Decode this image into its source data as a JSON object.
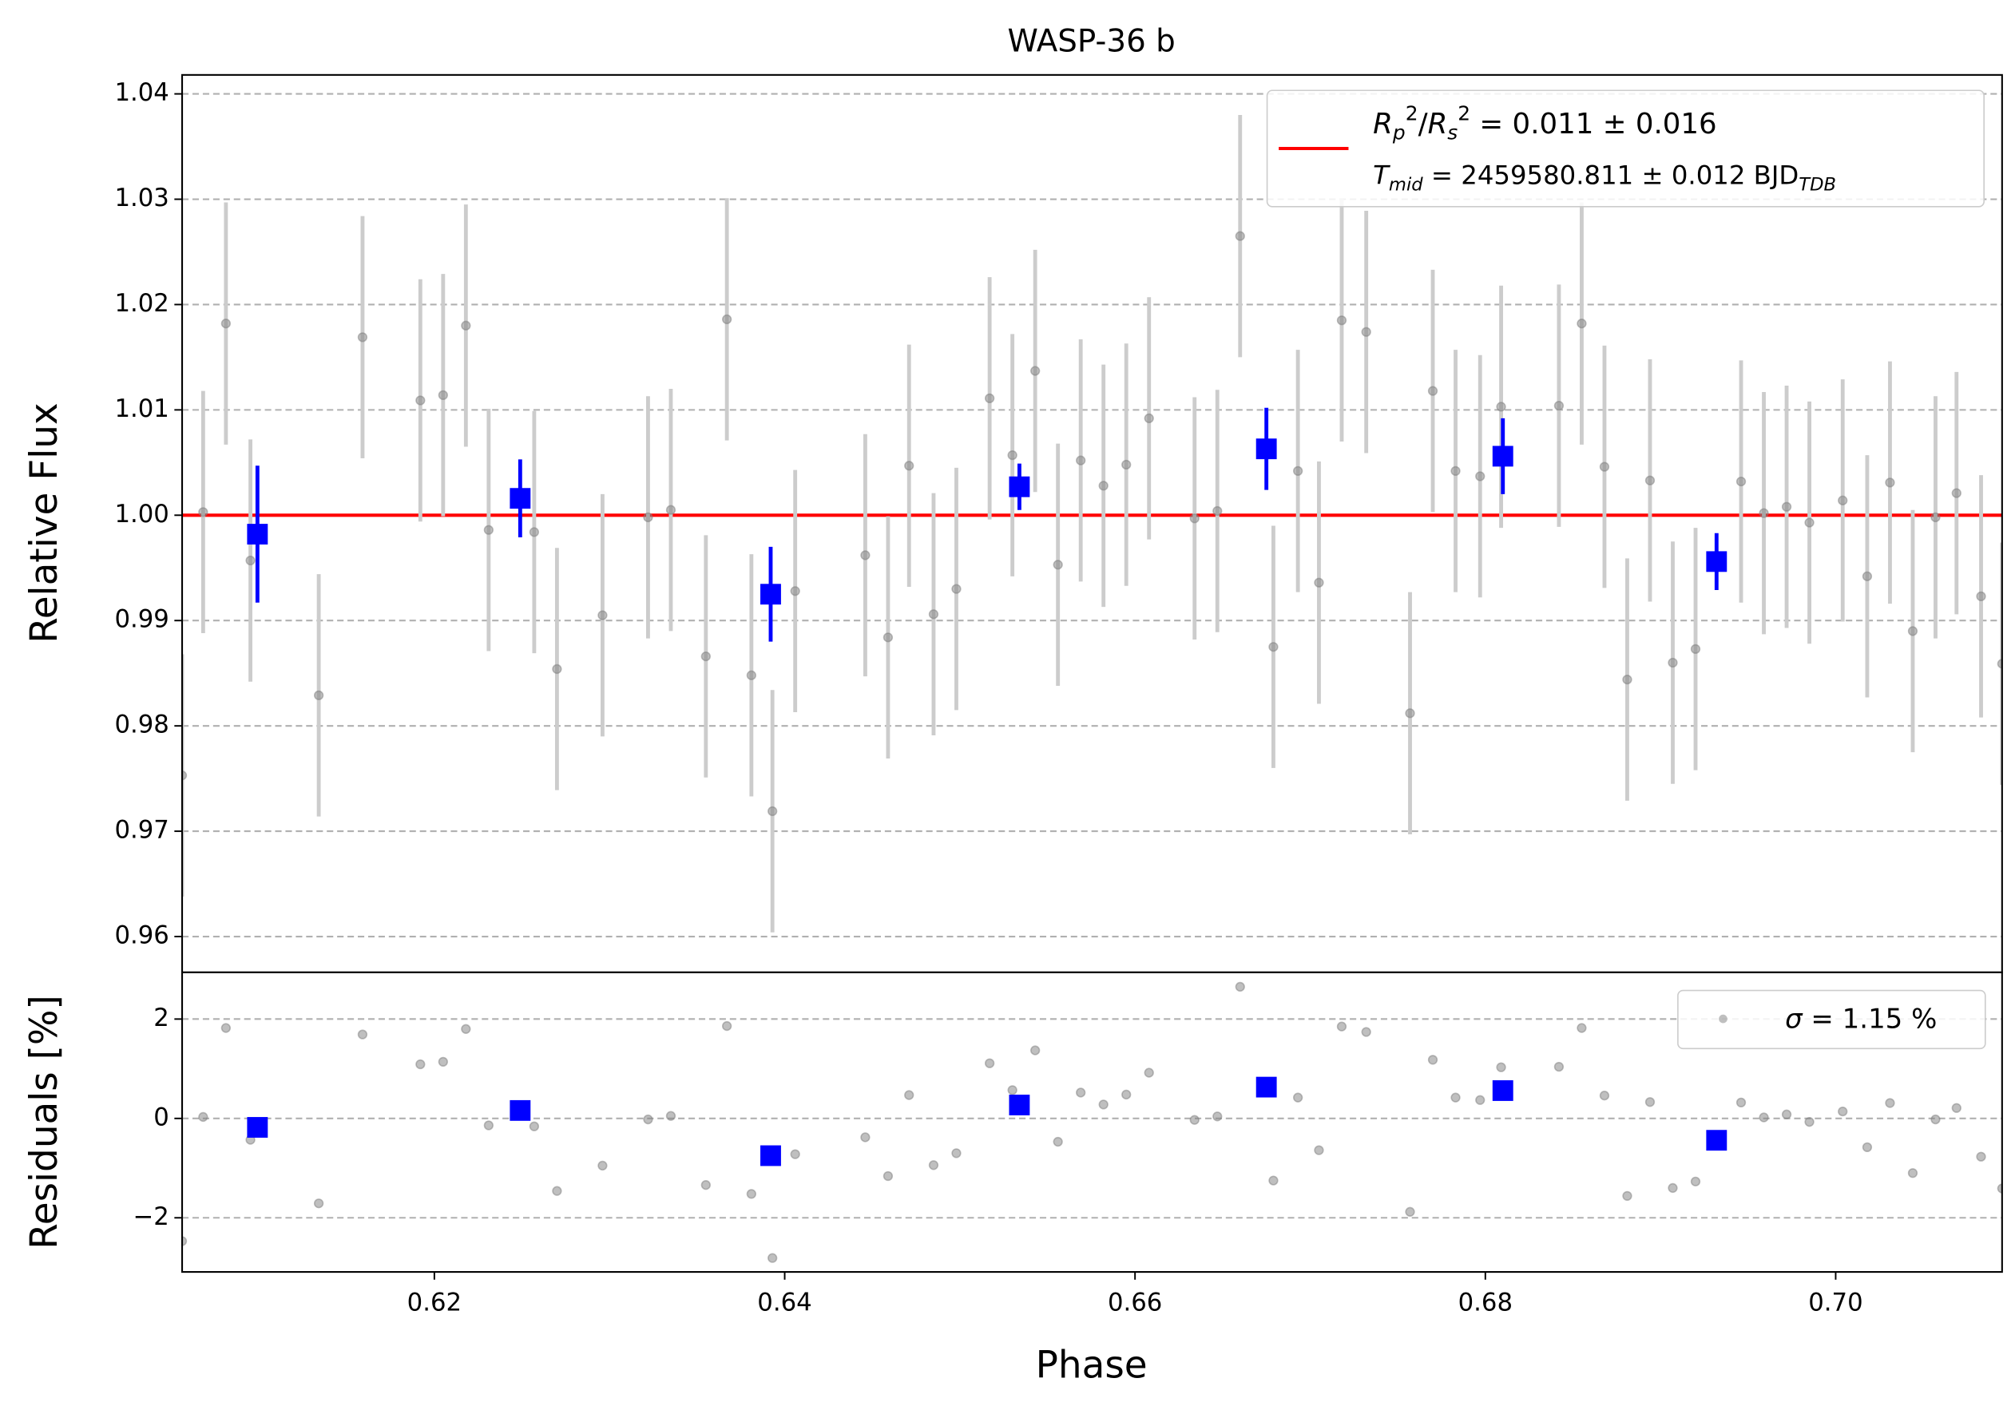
{
  "chart_data": [
    {
      "type": "scatter",
      "title": "WASP-36 b",
      "ylabel": "Relative Flux",
      "xlim": [
        0.6056,
        0.7095
      ],
      "ylim": [
        0.9566,
        1.0418
      ],
      "yticks": [
        0.96,
        0.97,
        0.98,
        0.99,
        {
          "value": 1,
          "label": "1.00"
        },
        1.01,
        1.02,
        1.03,
        1.04
      ],
      "grid": true,
      "legend": "upper right",
      "hline": {
        "value": 1,
        "color": "#ff0000",
        "label": [
          [
            {
              "text": "R",
              "style": "italic"
            },
            {
              "text": "p",
              "style": "sub italic"
            },
            {
              "text": "2",
              "style": "sup"
            },
            {
              "text": "/"
            },
            {
              "text": "R",
              "style": "italic"
            },
            {
              "text": "s",
              "style": "sub italic"
            },
            {
              "text": "2",
              "style": "sup"
            },
            {
              "text": " = 0.011 ± 0.016"
            }
          ],
          [
            {
              "text": "T",
              "style": "italic"
            },
            {
              "text": "mid",
              "style": "sub italic"
            },
            {
              "text": " = 2459580.811 ± 0.012 BJD"
            },
            {
              "text": "TDB",
              "style": "sub italic"
            }
          ]
        ]
      },
      "series": [
        {
          "color": "#808080",
          "marker": "circle",
          "error": 0.0115,
          "x": [
            0.6056,
            0.6068,
            0.6081,
            0.6095,
            0.6134,
            0.6159,
            0.6192,
            0.6205,
            0.6218,
            0.6231,
            0.6257,
            0.627,
            0.6296,
            0.6322,
            0.6335,
            0.6355,
            0.6367,
            0.6381,
            0.6393,
            0.6406,
            0.6446,
            0.6459,
            0.6471,
            0.6485,
            0.6498,
            0.6517,
            0.653,
            0.6543,
            0.6556,
            0.6569,
            0.6582,
            0.6595,
            0.6608,
            0.6634,
            0.6647,
            0.666,
            0.6679,
            0.6693,
            0.6705,
            0.6718,
            0.6732,
            0.6757,
            0.677,
            0.6783,
            0.6797,
            0.6809,
            0.6842,
            0.6855,
            0.6868,
            0.6881,
            0.6894,
            0.6907,
            0.692,
            0.6946,
            0.6959,
            0.6972,
            0.6985,
            0.7004,
            0.7018,
            0.7031,
            0.7044,
            0.7057,
            0.7069,
            0.7083,
            0.7095
          ],
          "values": [
            0.9753,
            1.0003,
            1.0182,
            0.9957,
            0.9829,
            1.0169,
            1.0109,
            1.0114,
            1.018,
            0.9986,
            0.9984,
            0.9854,
            0.9905,
            0.9998,
            1.0005,
            0.9866,
            1.0186,
            0.9848,
            0.9719,
            0.9928,
            0.9962,
            0.9884,
            1.0047,
            0.9906,
            0.993,
            1.0111,
            1.0057,
            1.0137,
            0.9953,
            1.0052,
            1.0028,
            1.0048,
            1.0092,
            0.9997,
            1.0004,
            1.0265,
            0.9875,
            1.0042,
            0.9936,
            1.0185,
            1.0174,
            0.9812,
            1.0118,
            1.0042,
            1.0037,
            1.0103,
            1.0104,
            1.0182,
            1.0046,
            0.9844,
            1.0033,
            0.986,
            0.9873,
            1.0032,
            1.0002,
            1.0008,
            0.9993,
            1.0014,
            0.9942,
            1.0031,
            0.989,
            0.9998,
            1.0021,
            0.9923,
            0.9859
          ]
        },
        {
          "color": "#0000ff",
          "marker": "square",
          "x": [
            0.6099,
            0.6249,
            0.6392,
            0.6534,
            0.6675,
            0.681,
            0.6932
          ],
          "values": [
            0.9982,
            1.0016,
            0.9925,
            1.0027,
            1.0063,
            1.0056,
            0.9956
          ],
          "errors": [
            0.0065,
            0.0037,
            0.0045,
            0.0022,
            0.0039,
            0.0036,
            0.0027
          ]
        }
      ]
    },
    {
      "type": "scatter",
      "ylabel": "Residuals [%]",
      "xlabel": "Phase",
      "xlim": [
        0.6056,
        0.7095
      ],
      "ylim": [
        -3.09,
        2.94
      ],
      "xticks": [
        0.62,
        0.64,
        0.66,
        0.68,
        {
          "value": 0.7,
          "label": "0.70"
        }
      ],
      "yticks": [
        {
          "value": -2,
          "label": "−2"
        },
        0,
        2
      ],
      "grid": true,
      "legend": "upper right",
      "series": [
        {
          "color": "#808080",
          "marker": "circle",
          "name": [
            {
              "text": "σ",
              "style": "italic"
            },
            {
              "text": " = 1.15 %"
            }
          ],
          "x": [
            0.6056,
            0.6068,
            0.6081,
            0.6095,
            0.6134,
            0.6159,
            0.6192,
            0.6205,
            0.6218,
            0.6231,
            0.6257,
            0.627,
            0.6296,
            0.6322,
            0.6335,
            0.6355,
            0.6367,
            0.6381,
            0.6393,
            0.6406,
            0.6446,
            0.6459,
            0.6471,
            0.6485,
            0.6498,
            0.6517,
            0.653,
            0.6543,
            0.6556,
            0.6569,
            0.6582,
            0.6595,
            0.6608,
            0.6634,
            0.6647,
            0.666,
            0.6679,
            0.6693,
            0.6705,
            0.6718,
            0.6732,
            0.6757,
            0.677,
            0.6783,
            0.6797,
            0.6809,
            0.6842,
            0.6855,
            0.6868,
            0.6881,
            0.6894,
            0.6907,
            0.692,
            0.6946,
            0.6959,
            0.6972,
            0.6985,
            0.7004,
            0.7018,
            0.7031,
            0.7044,
            0.7057,
            0.7069,
            0.7083,
            0.7095
          ],
          "values": [
            -2.47,
            0.03,
            1.82,
            -0.43,
            -1.71,
            1.69,
            1.09,
            1.14,
            1.8,
            -0.14,
            -0.16,
            -1.46,
            -0.95,
            -0.02,
            0.05,
            -1.34,
            1.86,
            -1.52,
            -2.81,
            -0.72,
            -0.38,
            -1.16,
            0.47,
            -0.94,
            -0.7,
            1.11,
            0.57,
            1.37,
            -0.47,
            0.52,
            0.28,
            0.48,
            0.92,
            -0.03,
            0.04,
            2.65,
            -1.25,
            0.42,
            -0.64,
            1.85,
            1.74,
            -1.88,
            1.18,
            0.42,
            0.37,
            1.03,
            1.04,
            1.82,
            0.46,
            -1.56,
            0.33,
            -1.4,
            -1.27,
            0.32,
            0.02,
            0.08,
            -0.07,
            0.14,
            -0.58,
            0.31,
            -1.1,
            -0.02,
            0.21,
            -0.77,
            -1.41
          ]
        },
        {
          "color": "#0000ff",
          "marker": "square",
          "x": [
            0.6099,
            0.6249,
            0.6392,
            0.6534,
            0.6675,
            0.681,
            0.6932
          ],
          "values": [
            -0.18,
            0.16,
            -0.75,
            0.27,
            0.63,
            0.56,
            -0.44
          ]
        }
      ]
    }
  ]
}
